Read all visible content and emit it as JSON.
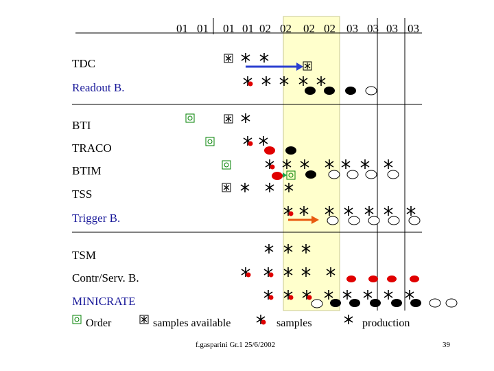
{
  "colors": {
    "black": "#000000",
    "blue": "#00008b",
    "green": "#008000",
    "red": "#e00000",
    "arrow_blue": "#2b3fd0",
    "arrow_red": "#e85a10",
    "green_arrow": "#19a34a",
    "highlight": "#ffffcc",
    "highlight_border": "#c8c890",
    "text_blue": "#1a1a9a",
    "text_red": "#a00000"
  },
  "header": {
    "months": [
      "01",
      "01",
      "01",
      "01",
      "02",
      "02",
      "02",
      "02",
      "03",
      "03",
      "03",
      "03"
    ]
  },
  "rows": [
    {
      "label": "TDC",
      "color": "#000000"
    },
    {
      "label": "Readout B.",
      "color": "#1a1a9a"
    },
    {
      "label": "BTI",
      "color": "#000000"
    },
    {
      "label": "TRACO",
      "color": "#000000"
    },
    {
      "label": "BTIM",
      "color": "#000000"
    },
    {
      "label": "TSS",
      "color": "#000000"
    },
    {
      "label": "Trigger B.",
      "color": "#1a1a9a"
    },
    {
      "label": "TSM",
      "color": "#000000"
    },
    {
      "label": "Contr/Serv. B.",
      "color": "#000000"
    },
    {
      "label": "MINICRATE",
      "color": "#1a1a9a"
    }
  ],
  "legend": {
    "order": "Order",
    "samples_available": "samples available",
    "samples": "samples",
    "production": "production"
  },
  "footer": {
    "citation": "f.gasparini Gr.1 25/6/2002",
    "page": "39"
  }
}
